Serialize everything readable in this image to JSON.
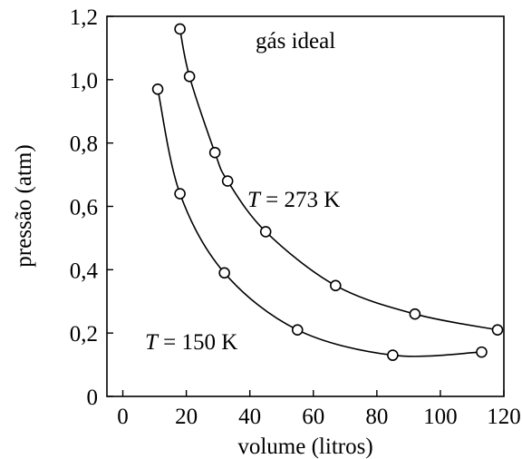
{
  "chart_data": {
    "type": "scatter",
    "title": "",
    "xlabel": "volume (litros)",
    "ylabel": "pressão (atm)",
    "xlim": [
      -5,
      120
    ],
    "ylim": [
      0,
      1.2
    ],
    "x_ticks": [
      0,
      20,
      40,
      60,
      80,
      100,
      120
    ],
    "y_ticks": [
      0,
      0.2,
      0.4,
      0.6,
      0.8,
      1.0,
      1.2
    ],
    "x_tick_labels": [
      "0",
      "20",
      "40",
      "60",
      "80",
      "100",
      "120"
    ],
    "y_tick_labels": [
      "0",
      "0,2",
      "0,4",
      "0,6",
      "0,8",
      "1,0",
      "1,2"
    ],
    "grid": false,
    "annotations": {
      "gas": "gás ideal",
      "t_symbol": "T",
      "t273_value": " = 273 K",
      "t150_value": " = 150 K"
    },
    "series": [
      {
        "name": "T = 273 K",
        "points": [
          {
            "x": 18,
            "y": 1.16
          },
          {
            "x": 21,
            "y": 1.01
          },
          {
            "x": 29,
            "y": 0.77
          },
          {
            "x": 33,
            "y": 0.68
          },
          {
            "x": 45,
            "y": 0.52
          },
          {
            "x": 67,
            "y": 0.35
          },
          {
            "x": 92,
            "y": 0.26
          },
          {
            "x": 118,
            "y": 0.21
          }
        ]
      },
      {
        "name": "T = 150 K",
        "points": [
          {
            "x": 11,
            "y": 0.97
          },
          {
            "x": 18,
            "y": 0.64
          },
          {
            "x": 32,
            "y": 0.39
          },
          {
            "x": 55,
            "y": 0.21
          },
          {
            "x": 85,
            "y": 0.13
          },
          {
            "x": 113,
            "y": 0.14
          }
        ]
      }
    ]
  }
}
